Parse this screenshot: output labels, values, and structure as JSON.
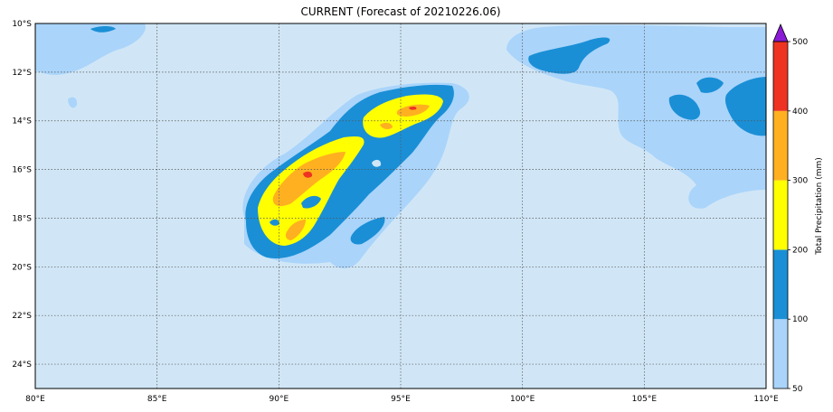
{
  "title": "CURRENT (Forecast of 20210226.06)",
  "map": {
    "lon_range": [
      80,
      110
    ],
    "lat_range": [
      -25,
      -10
    ],
    "lon_ticks": [
      "80°E",
      "85°E",
      "90°E",
      "95°E",
      "100°E",
      "105°E",
      "110°E"
    ],
    "lat_ticks": [
      "10°S",
      "12°S",
      "14°S",
      "16°S",
      "18°S",
      "20°S",
      "22°S",
      "24°S"
    ],
    "grid": true,
    "background_color": "#d0e6f6"
  },
  "colorbar": {
    "label": "Total Precipitation (mm)",
    "ticks": [
      "50",
      "100",
      "200",
      "300",
      "400",
      "500"
    ],
    "colors": [
      "#aad4fa",
      "#1a8fd6",
      "#ffff00",
      "#ffb020",
      "#ee3322"
    ],
    "extend_color": "#8a1ad6"
  }
}
